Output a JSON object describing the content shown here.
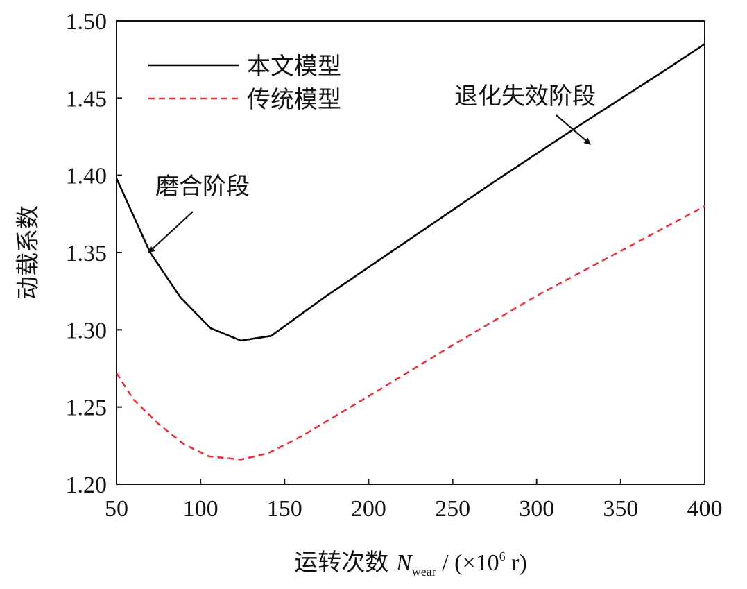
{
  "chart_data": {
    "type": "line",
    "title": "",
    "ylabel": "动载系数",
    "xlabel": {
      "prefix": "运转次数 ",
      "symbol": "N",
      "subscript": "wear",
      "suffix_start": " / (×10",
      "superscript": "6",
      "suffix_end": " r)"
    },
    "xlim": [
      50,
      400
    ],
    "ylim": [
      1.2,
      1.5
    ],
    "xticks": [
      50,
      100,
      150,
      200,
      250,
      300,
      350,
      400
    ],
    "yticks": [
      1.2,
      1.25,
      1.3,
      1.35,
      1.4,
      1.45,
      1.5
    ],
    "ytick_labels": [
      "1.20",
      "1.25",
      "1.30",
      "1.35",
      "1.40",
      "1.45",
      "1.50"
    ],
    "legend_position": "top-left",
    "grid": false,
    "series": [
      {
        "name": "本文模型",
        "style": "solid",
        "color": "#000000",
        "x": [
          50,
          70,
          88,
          106,
          124,
          142,
          175,
          225,
          275,
          325,
          375,
          400
        ],
        "y": [
          1.398,
          1.35,
          1.321,
          1.301,
          1.293,
          1.296,
          1.322,
          1.359,
          1.396,
          1.432,
          1.467,
          1.485
        ]
      },
      {
        "name": "传统模型",
        "style": "dashed",
        "color": "#e8323c",
        "x": [
          50,
          60,
          75,
          90,
          105,
          124,
          140,
          160,
          200,
          250,
          300,
          350,
          400
        ],
        "y": [
          1.272,
          1.255,
          1.239,
          1.226,
          1.218,
          1.216,
          1.22,
          1.231,
          1.257,
          1.29,
          1.322,
          1.351,
          1.38
        ]
      }
    ],
    "annotations": [
      {
        "text": "磨合阶段",
        "arrow_to": [
          69,
          1.35
        ]
      },
      {
        "text": "退化失效阶段",
        "arrow_to": [
          332,
          1.42
        ]
      }
    ]
  }
}
